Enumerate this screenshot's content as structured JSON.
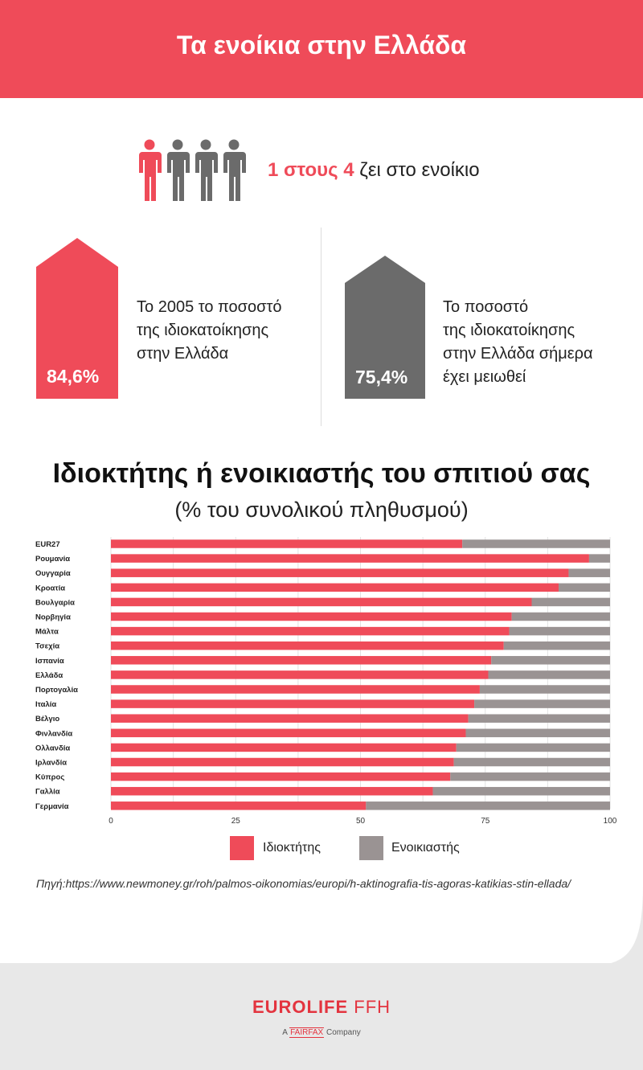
{
  "header": {
    "title": "Τα ενοίκια στην Ελλάδα"
  },
  "ratio": {
    "highlight": "1 στους 4",
    "rest": " ζει στο ενοίκιο"
  },
  "left_stat": {
    "value": "84,6%",
    "text": [
      "Το 2005 το ποσοστό",
      "της ιδιοκατοίκησης",
      "στην Ελλάδα"
    ]
  },
  "right_stat": {
    "value": "75,4%",
    "text": [
      "Το ποσοστό",
      "της ιδιοκατοίκησης",
      "στην Ελλάδα σήμερα",
      "έχει μειωθεί"
    ]
  },
  "colors": {
    "owner": "#ef4b59",
    "renter": "#9a9393",
    "grey_house": "#6b6b6b",
    "accent": "#ef4b59"
  },
  "chart_data": {
    "type": "bar",
    "stacked": true,
    "orientation": "horizontal",
    "title": "Ιδιοκτήτης ή ενοικιαστής του σπιτιού σας",
    "subtitle": "(% του συνολικού πληθυσμού)",
    "categories": [
      "EUR27",
      "Ρουμανία",
      "Ουγγαρία",
      "Κροατία",
      "Βουλγαρία",
      "Νορβηγία",
      "Μάλτα",
      "Τσεχία",
      "Ισπανία",
      "Ελλάδα",
      "Πορτογαλία",
      "Ιταλία",
      "Βέλγιο",
      "Φινλανδία",
      "Ολλανδία",
      "Ιρλανδία",
      "Κύπρος",
      "Γαλλία",
      "Γερμανία"
    ],
    "series": [
      {
        "name": "Ιδιοκτήτης",
        "values": [
          70.4,
          95.8,
          91.7,
          89.7,
          84.3,
          80.3,
          79.8,
          78.7,
          76.2,
          75.6,
          73.9,
          72.8,
          71.6,
          71.1,
          69.2,
          68.7,
          68.0,
          64.5,
          51.1
        ]
      },
      {
        "name": "Ενοικιαστής",
        "values": [
          29.6,
          4.2,
          8.3,
          10.3,
          15.7,
          19.7,
          20.2,
          21.3,
          23.8,
          24.4,
          26.1,
          27.2,
          28.4,
          28.9,
          30.8,
          31.3,
          32.0,
          35.5,
          48.9
        ]
      }
    ],
    "xlim": [
      0,
      100
    ],
    "xticks": [
      0,
      25,
      50,
      75,
      100
    ],
    "grid": true,
    "legend_position": "bottom-center"
  },
  "source": "Πηγή:https://www.newmoney.gr/roh/palmos-oikonomias/europi/h-aktinografia-tis-agoras-katikias-stin-ellada/",
  "logo": {
    "part1": "EUROLIFE",
    "part2": " FFH",
    "sub_prefix": "A ",
    "sub_brand": "FAIRFAX",
    "sub_suffix": " Company"
  }
}
